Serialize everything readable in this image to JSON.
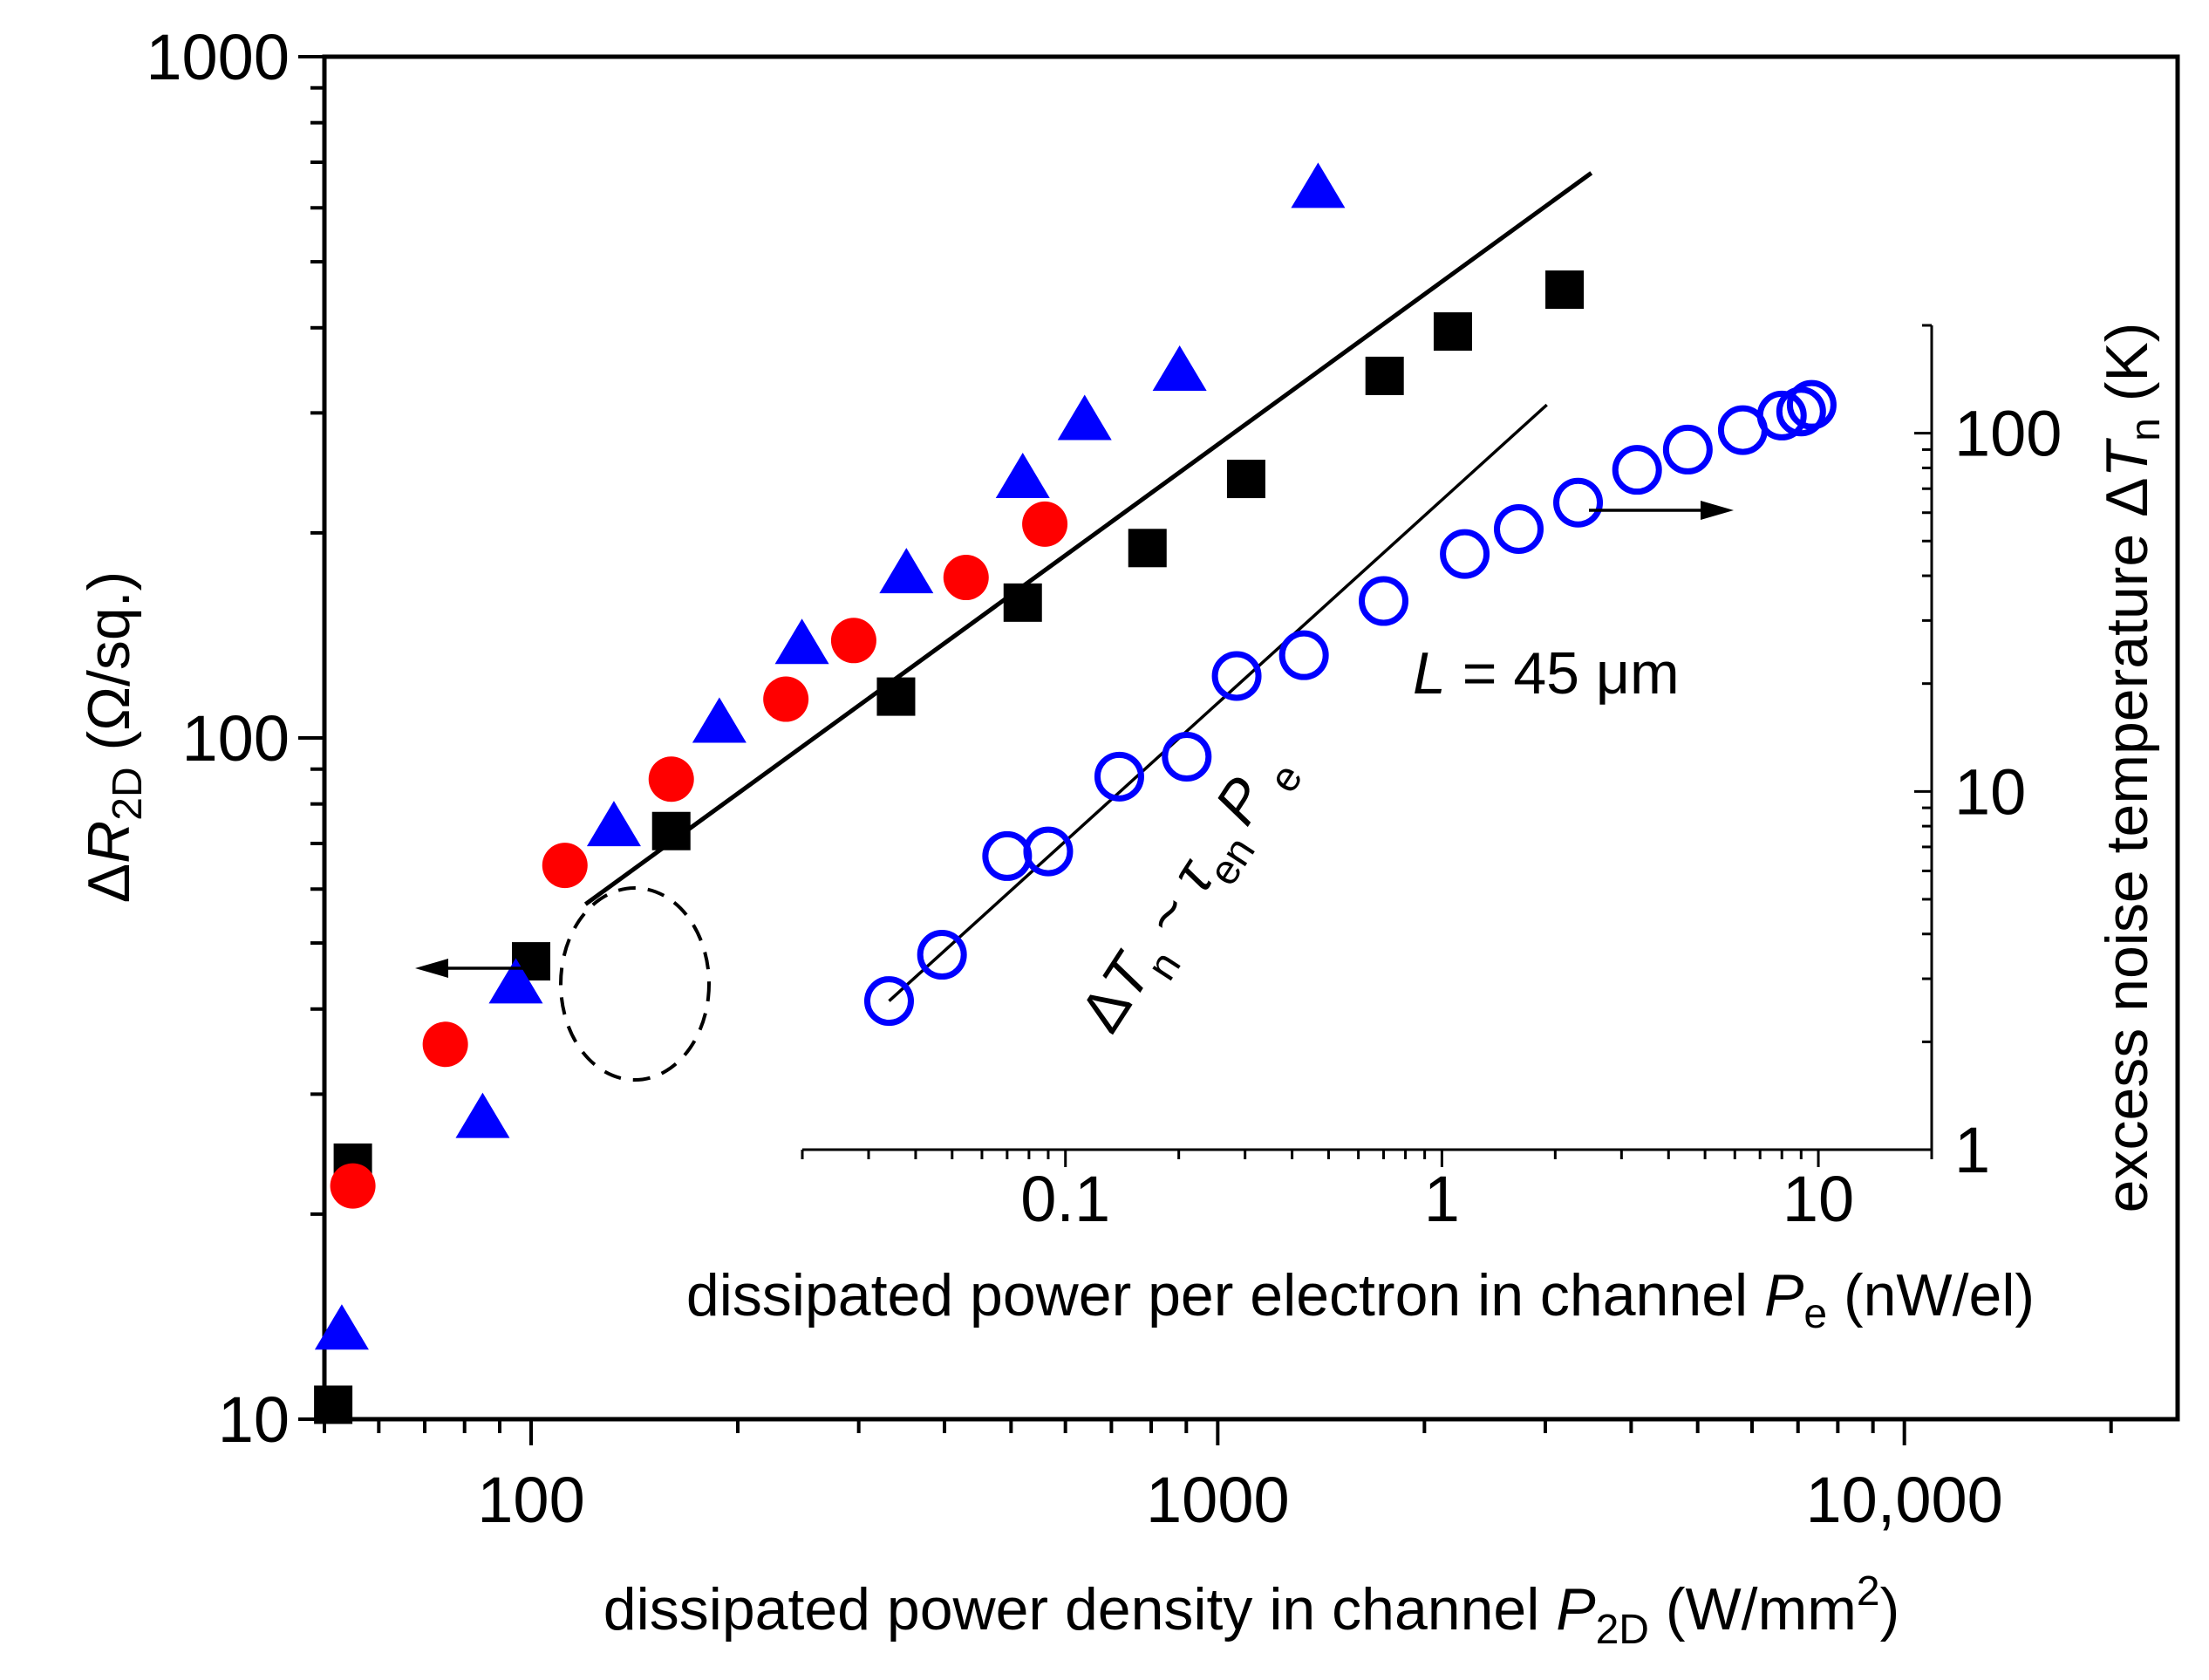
{
  "chart_data": [
    {
      "id": "main",
      "type": "scatter",
      "x_scale": "log",
      "y_scale": "log",
      "xlim": [
        50,
        25000
      ],
      "ylim": [
        10,
        1000
      ],
      "x_ticks": [
        {
          "value": 100,
          "label": "100"
        },
        {
          "value": 1000,
          "label": "1000"
        },
        {
          "value": 10000,
          "label": "10,000"
        }
      ],
      "y_ticks": [
        {
          "value": 10,
          "label": "10"
        },
        {
          "value": 100,
          "label": "100"
        },
        {
          "value": 1000,
          "label": "1000"
        }
      ],
      "xlabel": {
        "main": "dissipated power density in channel ",
        "var": "P",
        "sub": "2D",
        "unit_pre": " (W/mm",
        "sup": "2",
        "unit_post": ")"
      },
      "ylabel": {
        "delta": "Δ",
        "var": "R",
        "sub": "2D",
        "unit": " (Ω/sq.)"
      },
      "series": [
        {
          "name": "squares",
          "marker": "square",
          "color": "#000000",
          "points": [
            [
              51.5,
              10.5
            ],
            [
              55,
              23.8
            ],
            [
              100,
              47
            ],
            [
              160,
              73
            ],
            [
              340,
              115
            ],
            [
              520,
              158
            ],
            [
              790,
              190
            ],
            [
              1100,
              240
            ],
            [
              1750,
              340
            ],
            [
              2200,
              395
            ],
            [
              3200,
              455
            ]
          ]
        },
        {
          "name": "circles",
          "marker": "circle",
          "color": "#ff0000",
          "points": [
            [
              55,
              22
            ],
            [
              75,
              35.5
            ],
            [
              112,
              65
            ],
            [
              160,
              87
            ],
            [
              235,
              114
            ],
            [
              295,
              139
            ],
            [
              430,
              172
            ],
            [
              560,
              206
            ]
          ]
        },
        {
          "name": "triangles",
          "marker": "triangle",
          "color": "#0000ff",
          "points": [
            [
              53,
              13.5
            ],
            [
              85,
              27.6
            ],
            [
              95,
              43.5
            ],
            [
              132,
              74
            ],
            [
              188,
              105
            ],
            [
              248,
              137
            ],
            [
              352,
              174
            ],
            [
              520,
              240
            ],
            [
              640,
              292
            ],
            [
              880,
              345
            ],
            [
              1400,
              640
            ]
          ]
        }
      ],
      "fit_line": {
        "points": [
          [
            120,
            57
          ],
          [
            3500,
            675
          ]
        ]
      },
      "arrow_label": "←",
      "circle_group": "dashed circle around low-power points"
    },
    {
      "id": "inset",
      "type": "scatter",
      "x_scale": "log",
      "y_scale": "log",
      "xlim": [
        0.02,
        20
      ],
      "ylim": [
        1,
        200
      ],
      "x_ticks": [
        {
          "value": 0.1,
          "label": "0.1"
        },
        {
          "value": 1,
          "label": "1"
        },
        {
          "value": 10,
          "label": "10"
        }
      ],
      "y_ticks": [
        {
          "value": 1,
          "label": "1"
        },
        {
          "value": 10,
          "label": "10"
        },
        {
          "value": 100,
          "label": "100"
        }
      ],
      "xlabel": {
        "main": "dissipated power per electron in channel ",
        "var": "P",
        "sub": "e",
        "unit": " (nW/el)"
      },
      "ylabel": {
        "main": "excess noise temperature ",
        "delta": "Δ",
        "var": "T",
        "sub": "n",
        "unit": " (K)"
      },
      "series": [
        {
          "name": "open circles",
          "marker": "open-circle",
          "color": "#0000ff",
          "points": [
            [
              0.034,
              2.6
            ],
            [
              0.047,
              3.5
            ],
            [
              0.07,
              6.6
            ],
            [
              0.09,
              6.8
            ],
            [
              0.139,
              11.0
            ],
            [
              0.21,
              12.5
            ],
            [
              0.285,
              21
            ],
            [
              0.43,
              24
            ],
            [
              0.7,
              34
            ],
            [
              1.15,
              46
            ],
            [
              1.6,
              54
            ],
            [
              2.3,
              64
            ],
            [
              3.3,
              79
            ],
            [
              4.5,
              90
            ],
            [
              6.3,
              102
            ],
            [
              8.0,
              112
            ],
            [
              9.0,
              115
            ],
            [
              9.6,
              120
            ]
          ]
        }
      ],
      "fit_line": {
        "points": [
          [
            0.034,
            2.6
          ],
          [
            1.9,
            120
          ]
        ]
      }
    }
  ],
  "annotations": {
    "length_label": {
      "var": "L",
      "rest": " = 45 μm"
    },
    "scaling_law": {
      "delta": "Δ",
      "T": "T",
      "n": "n",
      "tilde": " ~ ",
      "tau": "τ",
      "en": "en",
      "P": "P",
      "e": "e"
    },
    "right_arrow": "→"
  },
  "colors": {
    "black": "#000000",
    "red": "#ff0000",
    "blue": "#0000ff"
  }
}
